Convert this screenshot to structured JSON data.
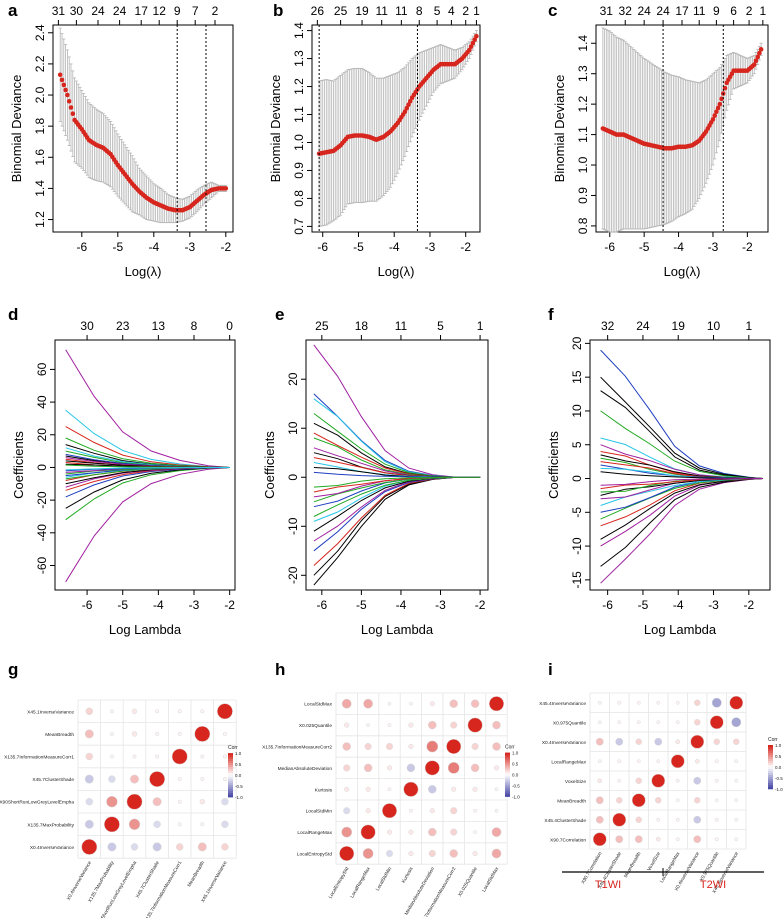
{
  "colors": {
    "cv_point": "#d7261e",
    "err_bar": "#b5b5b5",
    "vline": "#000000",
    "corr_pos": "#d7261e",
    "corr_neg": "#4a4aa8",
    "grid": "#e5e5e5",
    "group_label": "#d7261e"
  },
  "chart_data": [
    {
      "id": "a",
      "type": "line",
      "label": "a",
      "xlabel": "Log(λ)",
      "ylabel": "Binomial Deviance",
      "xlim": [
        -6.8,
        -1.8
      ],
      "ylim": [
        1.12,
        2.45
      ],
      "xticks": [
        "-6",
        "-5",
        "-4",
        "-3",
        "-2"
      ],
      "xtick_values": [
        -6,
        -5,
        -4,
        -3,
        -2
      ],
      "yticks": [
        "1.2",
        "1.4",
        "1.6",
        "1.8",
        "2.0",
        "2.2",
        "2.4"
      ],
      "ytick_values": [
        1.2,
        1.4,
        1.6,
        1.8,
        2.0,
        2.2,
        2.4
      ],
      "top_ticks": [
        "31",
        "30",
        "24",
        "24",
        "17",
        "12",
        "9",
        "7",
        "2"
      ],
      "top_tick_values": [
        -6.65,
        -6.15,
        -5.55,
        -4.95,
        -4.35,
        -3.85,
        -3.35,
        -2.85,
        -2.3
      ],
      "vlines": [
        -3.35,
        -2.55
      ],
      "curve_x": [
        -6.6,
        -6.4,
        -6.2,
        -6.0,
        -5.8,
        -5.6,
        -5.4,
        -5.2,
        -5.0,
        -4.8,
        -4.6,
        -4.4,
        -4.2,
        -4.0,
        -3.8,
        -3.6,
        -3.4,
        -3.2,
        -3.0,
        -2.8,
        -2.6,
        -2.4,
        -2.2,
        -2.0
      ],
      "curve_y": [
        2.13,
        2.0,
        1.84,
        1.78,
        1.71,
        1.68,
        1.66,
        1.62,
        1.55,
        1.49,
        1.43,
        1.38,
        1.34,
        1.31,
        1.29,
        1.27,
        1.26,
        1.26,
        1.28,
        1.32,
        1.36,
        1.39,
        1.4,
        1.4
      ],
      "err": [
        0.3,
        0.29,
        0.27,
        0.25,
        0.24,
        0.23,
        0.22,
        0.21,
        0.2,
        0.19,
        0.18,
        0.15,
        0.14,
        0.12,
        0.11,
        0.09,
        0.08,
        0.07,
        0.07,
        0.07,
        0.06,
        0.05,
        0.02,
        0.02
      ]
    },
    {
      "id": "b",
      "type": "line",
      "label": "b",
      "xlabel": "Log(λ)",
      "ylabel": "Binomial Deviance",
      "xlim": [
        -6.3,
        -1.6
      ],
      "ylim": [
        0.68,
        1.42
      ],
      "xticks": [
        "-6",
        "-5",
        "-4",
        "-3",
        "-2"
      ],
      "xtick_values": [
        -6,
        -5,
        -4,
        -3,
        -2
      ],
      "yticks": [
        "0.7",
        "0.8",
        "0.9",
        "1.0",
        "1.1",
        "1.2",
        "1.3",
        "1.4"
      ],
      "ytick_values": [
        0.7,
        0.8,
        0.9,
        1.0,
        1.1,
        1.2,
        1.3,
        1.4
      ],
      "top_ticks": [
        "26",
        "25",
        "19",
        "11",
        "11",
        "8",
        "5",
        "4",
        "2",
        "1"
      ],
      "top_tick_values": [
        -6.15,
        -5.5,
        -4.9,
        -4.35,
        -3.8,
        -3.3,
        -2.8,
        -2.4,
        -2.0,
        -1.7
      ],
      "vlines": [
        -6.1,
        -3.35
      ],
      "curve_x": [
        -6.1,
        -5.9,
        -5.7,
        -5.5,
        -5.3,
        -5.1,
        -4.9,
        -4.7,
        -4.5,
        -4.3,
        -4.1,
        -3.9,
        -3.7,
        -3.5,
        -3.3,
        -3.1,
        -2.9,
        -2.7,
        -2.5,
        -2.3,
        -2.1,
        -1.9,
        -1.7
      ],
      "curve_y": [
        0.96,
        0.965,
        0.97,
        0.99,
        1.02,
        1.025,
        1.025,
        1.02,
        1.01,
        1.02,
        1.04,
        1.07,
        1.11,
        1.16,
        1.2,
        1.23,
        1.26,
        1.28,
        1.28,
        1.28,
        1.3,
        1.33,
        1.38
      ],
      "err": [
        0.26,
        0.26,
        0.25,
        0.25,
        0.24,
        0.24,
        0.24,
        0.23,
        0.22,
        0.21,
        0.2,
        0.18,
        0.16,
        0.14,
        0.12,
        0.1,
        0.08,
        0.07,
        0.06,
        0.05,
        0.04,
        0.03,
        0.02
      ]
    },
    {
      "id": "c",
      "type": "line",
      "label": "c",
      "xlabel": "Log(λ)",
      "ylabel": "Binomial Deviance",
      "xlim": [
        -6.4,
        -1.4
      ],
      "ylim": [
        0.78,
        1.46
      ],
      "xticks": [
        "-6",
        "-5",
        "-4",
        "-3",
        "-2"
      ],
      "xtick_values": [
        -6,
        -5,
        -4,
        -3,
        -2
      ],
      "yticks": [
        "0.8",
        "0.9",
        "1.0",
        "1.1",
        "1.2",
        "1.3",
        "1.4"
      ],
      "ytick_values": [
        0.8,
        0.9,
        1.0,
        1.1,
        1.2,
        1.3,
        1.4
      ],
      "top_ticks": [
        "31",
        "32",
        "24",
        "24",
        "17",
        "11",
        "9",
        "6",
        "2",
        "1"
      ],
      "top_tick_values": [
        -6.1,
        -5.55,
        -5.0,
        -4.45,
        -3.9,
        -3.4,
        -2.9,
        -2.4,
        -1.95,
        -1.55
      ],
      "vlines": [
        -4.45,
        -2.7
      ],
      "curve_x": [
        -6.2,
        -6.0,
        -5.8,
        -5.6,
        -5.4,
        -5.2,
        -5.0,
        -4.8,
        -4.6,
        -4.4,
        -4.2,
        -4.0,
        -3.8,
        -3.6,
        -3.4,
        -3.2,
        -3.0,
        -2.8,
        -2.6,
        -2.4,
        -2.2,
        -2.0,
        -1.8,
        -1.6
      ],
      "curve_y": [
        1.12,
        1.11,
        1.1,
        1.1,
        1.09,
        1.08,
        1.07,
        1.065,
        1.06,
        1.055,
        1.055,
        1.06,
        1.06,
        1.065,
        1.08,
        1.11,
        1.15,
        1.2,
        1.27,
        1.31,
        1.31,
        1.31,
        1.33,
        1.38
      ],
      "err": [
        0.33,
        0.33,
        0.32,
        0.31,
        0.3,
        0.29,
        0.28,
        0.27,
        0.26,
        0.25,
        0.24,
        0.23,
        0.22,
        0.21,
        0.19,
        0.17,
        0.15,
        0.12,
        0.09,
        0.06,
        0.05,
        0.04,
        0.03,
        0.02
      ]
    },
    {
      "id": "d",
      "type": "line",
      "label": "d",
      "xlabel": "Log Lambda",
      "ylabel": "Coefficients",
      "xlim": [
        -6.9,
        -1.85
      ],
      "ylim": [
        -75,
        78
      ],
      "xticks": [
        "-6",
        "-5",
        "-4",
        "-3",
        "-2"
      ],
      "xtick_values": [
        -6,
        -5,
        -4,
        -3,
        -2
      ],
      "yticks": [
        "-60",
        "-40",
        "-20",
        "0",
        "20",
        "40",
        "60"
      ],
      "ytick_values": [
        -60,
        -40,
        -20,
        0,
        20,
        40,
        60
      ],
      "top_ticks": [
        "30",
        "23",
        "13",
        "8",
        "0"
      ],
      "top_tick_values": [
        -6.0,
        -5.0,
        -4.0,
        -3.0,
        -2.0
      ],
      "path_x": [
        -6.6,
        -5.8,
        -5.0,
        -4.2,
        -3.4,
        -2.6,
        -2.0
      ],
      "path_scales": [
        1,
        0.6,
        0.3,
        0.14,
        0.06,
        0.015,
        0
      ],
      "series_start": [
        72,
        -70,
        35,
        -32,
        25,
        -25,
        18,
        -18,
        14,
        -14,
        12,
        -12,
        10,
        -10,
        8,
        -8,
        7,
        -7,
        6,
        -6,
        5,
        -5,
        4,
        -4,
        3,
        -3,
        2,
        -2,
        1.5,
        -1.5
      ],
      "series_colors": [
        "#a020a0",
        "#a020a0",
        "#29c5e6",
        "#22aa22",
        "#d7261e",
        "#000000",
        "#22aa22",
        "#1f3fbf",
        "#000000",
        "#d7261e",
        "#29c5e6",
        "#a020a0",
        "#22aa22",
        "#000000",
        "#1f3fbf",
        "#d7261e",
        "#000000",
        "#22aa22",
        "#a020a0",
        "#29c5e6",
        "#d7261e",
        "#1f3fbf",
        "#000000",
        "#22aa22",
        "#d7261e",
        "#a020a0",
        "#000000",
        "#1f3fbf",
        "#22aa22",
        "#29c5e6"
      ]
    },
    {
      "id": "e",
      "type": "line",
      "label": "e",
      "xlabel": "Log Lambda",
      "ylabel": "Coefficients",
      "xlim": [
        -6.4,
        -1.8
      ],
      "ylim": [
        -23,
        28
      ],
      "xticks": [
        "-6",
        "-5",
        "-4",
        "-3",
        "-2"
      ],
      "xtick_values": [
        -6,
        -5,
        -4,
        -3,
        -2
      ],
      "yticks": [
        "-20",
        "-10",
        "0",
        "10",
        "20"
      ],
      "ytick_values": [
        -20,
        -10,
        0,
        10,
        20
      ],
      "top_ticks": [
        "25",
        "18",
        "11",
        "5",
        "1"
      ],
      "top_tick_values": [
        -6.0,
        -5.0,
        -4.0,
        -3.0,
        -2.0
      ],
      "path_x": [
        -6.2,
        -5.6,
        -5.0,
        -4.4,
        -3.8,
        -3.2,
        -2.6,
        -2.0
      ],
      "path_scales": [
        1,
        0.75,
        0.45,
        0.2,
        0.07,
        0.02,
        0.0,
        0
      ],
      "series_start": [
        27,
        -22,
        17,
        -20,
        16,
        -18,
        13,
        -15,
        11,
        -13,
        9,
        -11,
        8,
        -9,
        6,
        -8,
        5,
        -6,
        4,
        -5,
        3,
        -4,
        2,
        -3,
        1,
        -2
      ],
      "series_colors": [
        "#a020a0",
        "#000000",
        "#1f3fbf",
        "#000000",
        "#29c5e6",
        "#d7261e",
        "#22aa22",
        "#1f3fbf",
        "#000000",
        "#a020a0",
        "#d7261e",
        "#000000",
        "#22aa22",
        "#29c5e6",
        "#a020a0",
        "#22aa22",
        "#000000",
        "#1f3fbf",
        "#d7261e",
        "#22aa22",
        "#29c5e6",
        "#a020a0",
        "#000000",
        "#d7261e",
        "#1f3fbf",
        "#22aa22"
      ]
    },
    {
      "id": "f",
      "type": "line",
      "label": "f",
      "xlabel": "Log Lambda",
      "ylabel": "Coefficients",
      "xlim": [
        -6.5,
        -1.4
      ],
      "ylim": [
        -16.5,
        20.5
      ],
      "xticks": [
        "-6",
        "-5",
        "-4",
        "-3",
        "-2"
      ],
      "xtick_values": [
        -6,
        -5,
        -4,
        -3,
        -2
      ],
      "yticks": [
        "-15",
        "-10",
        "-5",
        "0",
        "5",
        "10",
        "15",
        "20"
      ],
      "ytick_values": [
        -15,
        -10,
        -5,
        0,
        5,
        10,
        15,
        20
      ],
      "top_ticks": [
        "32",
        "24",
        "19",
        "10",
        "1"
      ],
      "top_tick_values": [
        -6.0,
        -5.0,
        -4.0,
        -3.0,
        -2.0
      ],
      "path_x": [
        -6.2,
        -5.5,
        -4.8,
        -4.1,
        -3.4,
        -2.7,
        -2.0,
        -1.6
      ],
      "path_scales": [
        1,
        0.78,
        0.52,
        0.25,
        0.1,
        0.04,
        0.01,
        0
      ],
      "series_start": [
        19,
        -15.5,
        15,
        -13,
        13,
        -10,
        10,
        -9,
        6,
        -7,
        5,
        -6,
        4,
        -5,
        3.5,
        -4,
        3,
        -3,
        2.5,
        -2.5,
        2,
        -2,
        1.5,
        -1.5,
        1,
        -1
      ],
      "series_colors": [
        "#1f3fbf",
        "#a020a0",
        "#000000",
        "#000000",
        "#000000",
        "#a020a0",
        "#22aa22",
        "#000000",
        "#29c5e6",
        "#d7261e",
        "#a020a0",
        "#22aa22",
        "#d7261e",
        "#1f3fbf",
        "#000000",
        "#29c5e6",
        "#22aa22",
        "#a020a0",
        "#d7261e",
        "#000000",
        "#1f3fbf",
        "#22aa22",
        "#29c5e6",
        "#d7261e",
        "#000000",
        "#a020a0"
      ]
    },
    {
      "id": "g",
      "type": "heatmap",
      "label": "g",
      "rows": [
        "X45.1InverseVariance",
        "MeanBreadth",
        "X135.7InformationMeasureCorr1",
        "X45.7ClusterShade",
        "X90ShortRunLowGreyLevelEmpha",
        "X135.7MaxProbability",
        "X0.4InverseVariance"
      ],
      "cols": [
        "X0.4InverseVariance",
        "X135.7MaxProbability",
        "X90ShortRunLowGreyLevelEmpha",
        "X45.7ClusterShade",
        "X135.7InformationMeasureCorr1",
        "MeanBreadth",
        "X45.1InverseVariance"
      ],
      "values": [
        [
          0.2,
          0.05,
          0.1,
          0.05,
          0.05,
          0.05,
          1.0
        ],
        [
          0.3,
          0.05,
          0.1,
          0.05,
          0.05,
          1.0,
          0.05
        ],
        [
          0.2,
          0.05,
          0.05,
          0.05,
          1.0,
          0.05,
          0.05
        ],
        [
          -0.3,
          -0.2,
          0.3,
          1.0,
          0.05,
          0.05,
          0.05
        ],
        [
          -0.2,
          0.5,
          1.0,
          0.3,
          0.05,
          0.1,
          -0.2
        ],
        [
          -0.3,
          1.0,
          0.5,
          -0.2,
          0.05,
          0.05,
          -0.2
        ],
        [
          1.0,
          -0.3,
          -0.2,
          -0.3,
          0.2,
          0.3,
          0.2
        ]
      ],
      "legend_title": "Corr",
      "legend_ticks": [
        "1.0",
        "0.5",
        "0.0",
        "-0.5",
        "-1.0"
      ]
    },
    {
      "id": "h",
      "type": "heatmap",
      "label": "h",
      "rows": [
        "LocalStdMax",
        "X0.025Quantile",
        "X135.7InformationMeasureCorr2",
        "MedianAbsoluteDeviation",
        "Kurtosis",
        "LocalStdMin",
        "LocalRangeMax",
        "LocalEntropyStd"
      ],
      "cols": [
        "LocalEntropyStd",
        "LocalRangeMax",
        "LocalStdMin",
        "Kurtosis",
        "MedianAbsoluteDeviation",
        "X135.7InformationMeasureCorr2",
        "X0.025Quantile",
        "LocalStdMax"
      ],
      "values": [
        [
          0.4,
          0.4,
          0.05,
          0.05,
          0.1,
          0.3,
          0.3,
          1.0
        ],
        [
          0.1,
          0.05,
          0.05,
          0.1,
          0.3,
          0.2,
          1.0,
          0.3
        ],
        [
          0.3,
          0.2,
          0.2,
          0.1,
          0.6,
          1.0,
          0.2,
          0.3
        ],
        [
          0.2,
          0.3,
          0.1,
          -0.3,
          1.0,
          0.6,
          0.3,
          0.1
        ],
        [
          0.1,
          0.1,
          0.05,
          1.0,
          -0.3,
          0.1,
          0.1,
          0.05
        ],
        [
          -0.2,
          0.1,
          1.0,
          0.05,
          0.1,
          0.2,
          0.05,
          0.05
        ],
        [
          0.5,
          1.0,
          0.1,
          0.1,
          0.3,
          0.2,
          0.05,
          0.4
        ],
        [
          1.0,
          0.5,
          -0.2,
          0.1,
          0.2,
          0.3,
          0.1,
          0.4
        ]
      ],
      "legend_title": "Corr",
      "legend_ticks": [
        "1.0",
        "0.5",
        "0.0",
        "-0.5",
        "-1.0"
      ]
    },
    {
      "id": "i",
      "type": "heatmap",
      "label": "i",
      "rows": [
        "X45.4InverseVariance",
        "X0.975Quantile",
        "X0.4InverseVariance",
        "LocalRangeMax",
        "VoxelSize",
        "MeanBreadth",
        "X45.4ClusterShade",
        "X90.7Correlation"
      ],
      "cols": [
        "X90.7Correlation",
        "X45.4ClusterShade",
        "MeanBreadth",
        "VoxelSize",
        "LocalRangeMax",
        "X0.4InverseVariance",
        "X0.975Quantile",
        "X45.4InverseVariance"
      ],
      "values": [
        [
          0.05,
          0.05,
          0.05,
          0.05,
          0.05,
          0.2,
          -0.5,
          1.0
        ],
        [
          0.05,
          0.05,
          0.05,
          0.05,
          0.05,
          0.2,
          1.0,
          -0.5
        ],
        [
          0.3,
          -0.3,
          0.2,
          -0.3,
          0.1,
          1.0,
          0.2,
          0.2
        ],
        [
          0.05,
          0.05,
          0.05,
          0.05,
          1.0,
          0.1,
          0.05,
          0.05
        ],
        [
          0.1,
          0.05,
          0.2,
          1.0,
          0.05,
          -0.3,
          0.05,
          0.05
        ],
        [
          0.3,
          0.2,
          1.0,
          0.2,
          0.05,
          0.2,
          0.05,
          0.05
        ],
        [
          0.3,
          1.0,
          0.2,
          0.05,
          0.05,
          -0.3,
          0.05,
          0.05
        ],
        [
          1.0,
          0.3,
          0.3,
          0.1,
          0.05,
          0.3,
          0.05,
          0.05
        ]
      ],
      "legend_title": "Corr",
      "legend_ticks": [
        "1.0",
        "0.5",
        "0.0",
        "-0.5",
        "-1.0"
      ],
      "groups": [
        "T1WI",
        "T2WI"
      ]
    }
  ]
}
